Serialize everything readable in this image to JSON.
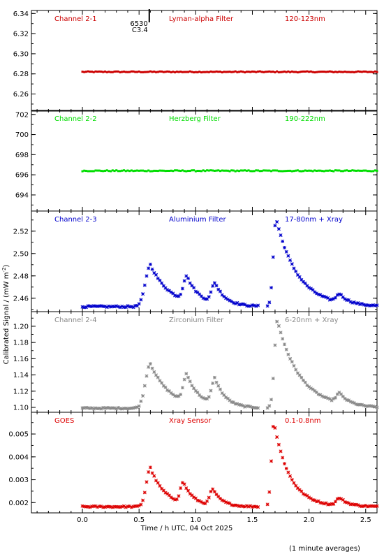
{
  "figure": {
    "xlabel": "Time / h UTC, 04 Oct 2025",
    "ylabel": "Calibrated Signal / (mW m",
    "ylabel_sup": "-2",
    "ylabel_close": ")",
    "note": "(1 minute averages)",
    "marker_labels": [
      "6530",
      "C3.4"
    ],
    "marker_time": 0.59
  },
  "chart_data": [
    {
      "type": "scatter",
      "labels": [
        "Channel 2-1",
        "Lyman-alpha Filter",
        "120-123nm"
      ],
      "color": "#cc0000",
      "xlim": [
        -0.45,
        2.6
      ],
      "ylim": [
        6.243,
        6.343
      ],
      "yticks": [
        6.26,
        6.28,
        6.3,
        6.32,
        6.34
      ],
      "ytick_labels": [
        "6.26",
        "6.28",
        "6.30",
        "6.32",
        "6.34"
      ],
      "start": 0.0,
      "baseline": 6.282,
      "peaks": [],
      "gap": null,
      "noise": 0.0005
    },
    {
      "type": "scatter",
      "labels": [
        "Channel 2-2",
        "Herzberg Filter",
        "190-222nm"
      ],
      "color": "#00dd00",
      "xlim": [
        -0.45,
        2.6
      ],
      "ylim": [
        692.4,
        702.4
      ],
      "yticks": [
        694,
        696,
        698,
        700,
        702
      ],
      "ytick_labels": [
        "694",
        "696",
        "698",
        "700",
        "702"
      ],
      "start": 0.0,
      "baseline": 696.4,
      "peaks": [],
      "gap": null,
      "noise": 0.05
    },
    {
      "type": "scatter",
      "labels": [
        "Channel 2-3",
        "Aluminium Filter",
        "17-80nm + Xray"
      ],
      "color": "#0000cc",
      "xlim": [
        -0.45,
        2.6
      ],
      "ylim": [
        2.448,
        2.538
      ],
      "yticks": [
        2.46,
        2.48,
        2.5,
        2.52
      ],
      "ytick_labels": [
        "2.46",
        "2.48",
        "2.50",
        "2.52"
      ],
      "start": 0.0,
      "baseline": 2.4525,
      "peaks": [
        [
          0.6,
          0.0375,
          0.06,
          0.17
        ],
        [
          0.92,
          0.022,
          0.04,
          0.11
        ],
        [
          1.17,
          0.018,
          0.04,
          0.09
        ],
        [
          1.71,
          0.0785,
          0.035,
          0.19
        ],
        [
          2.27,
          0.0075,
          0.04,
          0.08
        ]
      ],
      "gap": [
        1.55,
        1.62
      ],
      "noise": 0.0007
    },
    {
      "type": "scatter",
      "labels": [
        "Channel 2-4",
        "Zirconium Filter",
        "6-20nm + Xray"
      ],
      "color": "#888888",
      "xlim": [
        -0.45,
        2.6
      ],
      "ylim": [
        1.094,
        1.218
      ],
      "yticks": [
        1.1,
        1.12,
        1.14,
        1.16,
        1.18,
        1.2
      ],
      "ytick_labels": [
        "1.10",
        "1.12",
        "1.14",
        "1.16",
        "1.18",
        "1.20"
      ],
      "start": 0.0,
      "baseline": 1.099,
      "peaks": [
        [
          0.6,
          0.055,
          0.06,
          0.17
        ],
        [
          0.92,
          0.034,
          0.04,
          0.11
        ],
        [
          1.17,
          0.032,
          0.04,
          0.09
        ],
        [
          1.72,
          0.108,
          0.035,
          0.2
        ],
        [
          2.27,
          0.012,
          0.04,
          0.08
        ]
      ],
      "gap": [
        1.55,
        1.62
      ],
      "noise": 0.0008
    },
    {
      "type": "scatter",
      "labels": [
        "GOES",
        "Xray Sensor",
        "0.1-0.8nm"
      ],
      "color": "#dd0000",
      "xlim": [
        -0.45,
        2.6
      ],
      "ylim": [
        0.00155,
        0.00595
      ],
      "yticks": [
        0.002,
        0.003,
        0.004,
        0.005
      ],
      "ytick_labels": [
        "0.002",
        "0.003",
        "0.004",
        "0.005"
      ],
      "start": 0.0,
      "baseline": 0.00182,
      "peaks": [
        [
          0.6,
          0.0017,
          0.05,
          0.13
        ],
        [
          0.89,
          0.0009,
          0.035,
          0.09
        ],
        [
          1.15,
          0.0007,
          0.035,
          0.08
        ],
        [
          1.69,
          0.0037,
          0.03,
          0.14
        ],
        [
          2.27,
          0.00033,
          0.04,
          0.08
        ]
      ],
      "gap": [
        1.55,
        1.62
      ],
      "noise": 3e-05
    }
  ],
  "xticks": [
    0.0,
    0.5,
    1.0,
    1.5,
    2.0,
    2.5
  ],
  "xtick_labels": [
    "0.0",
    "0.5",
    "1.0",
    "1.5",
    "2.0",
    "2.5"
  ]
}
